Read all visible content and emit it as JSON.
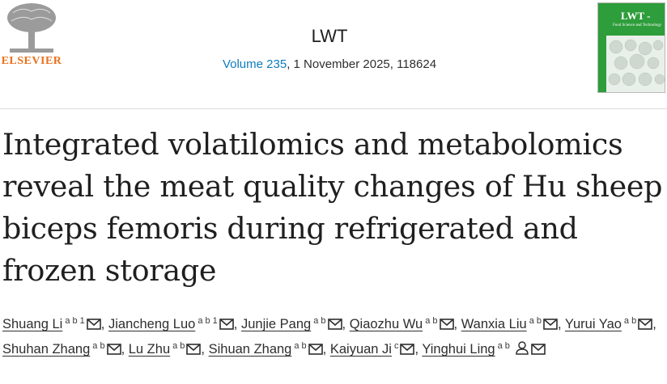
{
  "publisher": "ELSEVIER",
  "journal": {
    "name": "LWT",
    "volume": "Volume 235",
    "issue_info": ", 1 November 2025, 118624"
  },
  "cover": {
    "title": "LWT -",
    "subtitle": "Food Science and Technology"
  },
  "article": {
    "title_lines": [
      "Integrated volatilomics and metabolomics",
      "reveal the meat quality changes of Hu sheep",
      "biceps femoris during refrigerated and",
      "frozen storage"
    ]
  },
  "authors": {
    "separator": ",",
    "list": [
      {
        "name": "Shuang Li",
        "affiliations": "a b 1"
      },
      {
        "name": "Jiancheng Luo",
        "affiliations": "a b 1"
      },
      {
        "name": "Junjie Pang",
        "affiliations": "a b"
      },
      {
        "name": "Qiaozhu Wu",
        "affiliations": "a b"
      },
      {
        "name": "Wanxia Liu",
        "affiliations": "a b"
      },
      {
        "name": "Yurui Yao",
        "affiliations": "a b"
      },
      {
        "name": "Shuhan Zhang",
        "affiliations": "a b"
      },
      {
        "name": "Lu Zhu",
        "affiliations": "a b"
      },
      {
        "name": "Sihuan Zhang",
        "affiliations": "a b"
      },
      {
        "name": "Kaiyuan Ji",
        "affiliations": "c"
      },
      {
        "name": "Yinghui Ling",
        "affiliations": "a b"
      }
    ]
  }
}
